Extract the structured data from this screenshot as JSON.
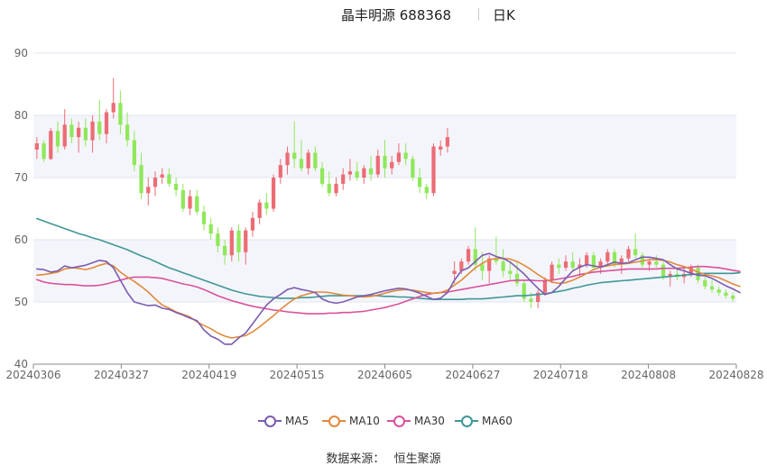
{
  "header": {
    "title": "晶丰明源 688368",
    "period": "日K"
  },
  "source": {
    "label": "数据来源：",
    "value": "恒生聚源"
  },
  "colors": {
    "up": "#ec6c75",
    "down": "#8fe85a",
    "ma5": "#7b5cb0",
    "ma10": "#e08a3c",
    "ma30": "#d9519c",
    "ma60": "#3f9797"
  },
  "chart_data": {
    "type": "candlestick",
    "ylim": [
      40,
      90
    ],
    "yticks": [
      40,
      50,
      60,
      70,
      80,
      90
    ],
    "x_tick_labels": [
      "20240306",
      "20240327",
      "20240419",
      "20240515",
      "20240605",
      "20240627",
      "20240718",
      "20240808",
      "20240828"
    ],
    "legend": [
      {
        "key": "ma5",
        "label": "MA5"
      },
      {
        "key": "ma10",
        "label": "MA10"
      },
      {
        "key": "ma30",
        "label": "MA30"
      },
      {
        "key": "ma60",
        "label": "MA60"
      }
    ],
    "ohlc": [
      [
        74.5,
        76.5,
        73.0,
        75.5
      ],
      [
        75.5,
        76.0,
        72.5,
        73.0
      ],
      [
        73.0,
        78.0,
        72.8,
        77.5
      ],
      [
        77.5,
        79.0,
        74.0,
        75.0
      ],
      [
        75.0,
        81.0,
        74.5,
        78.5
      ],
      [
        78.5,
        79.5,
        75.5,
        76.5
      ],
      [
        76.5,
        79.0,
        74.0,
        78.0
      ],
      [
        78.0,
        79.5,
        75.0,
        76.0
      ],
      [
        76.0,
        80.0,
        74.0,
        79.0
      ],
      [
        79.0,
        82.5,
        76.0,
        77.0
      ],
      [
        77.0,
        81.0,
        75.5,
        80.5
      ],
      [
        80.5,
        86.0,
        79.5,
        82.0
      ],
      [
        82.0,
        84.0,
        77.0,
        78.5
      ],
      [
        78.5,
        80.5,
        75.0,
        76.0
      ],
      [
        76.0,
        77.5,
        71.0,
        72.0
      ],
      [
        72.0,
        74.0,
        66.5,
        67.5
      ],
      [
        67.5,
        70.0,
        65.5,
        68.5
      ],
      [
        68.5,
        71.0,
        67.0,
        70.0
      ],
      [
        70.0,
        71.5,
        69.0,
        70.5
      ],
      [
        70.5,
        71.5,
        68.5,
        69.0
      ],
      [
        69.0,
        70.0,
        67.0,
        68.0
      ],
      [
        68.0,
        69.0,
        64.5,
        65.0
      ],
      [
        65.0,
        68.0,
        64.0,
        67.0
      ],
      [
        67.0,
        68.0,
        64.0,
        64.5
      ],
      [
        64.5,
        65.5,
        61.5,
        62.5
      ],
      [
        62.5,
        63.5,
        60.0,
        61.0
      ],
      [
        61.0,
        62.0,
        58.0,
        59.0
      ],
      [
        59.0,
        60.0,
        56.0,
        57.5
      ],
      [
        57.5,
        62.0,
        56.5,
        61.5
      ],
      [
        61.5,
        62.5,
        56.5,
        58.0
      ],
      [
        58.0,
        62.0,
        56.0,
        61.5
      ],
      [
        61.5,
        64.5,
        60.5,
        63.5
      ],
      [
        63.5,
        66.5,
        62.5,
        66.0
      ],
      [
        66.0,
        67.5,
        64.0,
        65.0
      ],
      [
        65.0,
        70.5,
        64.5,
        70.0
      ],
      [
        70.0,
        73.0,
        69.0,
        72.0
      ],
      [
        72.0,
        75.0,
        70.5,
        74.0
      ],
      [
        74.0,
        79.0,
        71.5,
        73.0
      ],
      [
        73.0,
        76.0,
        71.0,
        71.5
      ],
      [
        71.5,
        74.5,
        70.5,
        74.0
      ],
      [
        74.0,
        75.0,
        71.0,
        71.5
      ],
      [
        71.5,
        72.5,
        68.5,
        69.0
      ],
      [
        69.0,
        71.0,
        67.0,
        67.5
      ],
      [
        67.5,
        70.0,
        67.0,
        69.0
      ],
      [
        69.0,
        71.5,
        68.0,
        70.5
      ],
      [
        70.5,
        73.0,
        69.5,
        71.0
      ],
      [
        71.0,
        72.5,
        69.5,
        70.0
      ],
      [
        70.0,
        72.0,
        69.0,
        71.5
      ],
      [
        71.5,
        73.5,
        69.5,
        70.5
      ],
      [
        70.5,
        74.5,
        70.0,
        73.5
      ],
      [
        73.5,
        76.0,
        70.0,
        71.5
      ],
      [
        71.5,
        73.5,
        70.5,
        72.5
      ],
      [
        72.5,
        75.5,
        72.0,
        74.0
      ],
      [
        74.0,
        75.5,
        72.0,
        73.0
      ],
      [
        73.0,
        73.5,
        69.5,
        70.0
      ],
      [
        70.0,
        71.5,
        67.5,
        68.5
      ],
      [
        68.5,
        69.0,
        66.5,
        67.5
      ],
      [
        67.5,
        75.5,
        67.0,
        75.0
      ],
      [
        74.5,
        76.0,
        73.5,
        75.0
      ],
      [
        75.0,
        78.0,
        74.0,
        76.5
      ],
      [
        54.5,
        56.5,
        53.0,
        55.0
      ],
      [
        55.0,
        57.0,
        54.5,
        56.5
      ],
      [
        56.5,
        59.0,
        56.0,
        58.5
      ],
      [
        58.5,
        62.0,
        55.0,
        56.0
      ],
      [
        56.0,
        58.0,
        53.5,
        55.0
      ],
      [
        55.0,
        57.5,
        53.0,
        57.0
      ],
      [
        57.0,
        60.5,
        56.0,
        56.5
      ],
      [
        56.5,
        58.5,
        54.0,
        55.0
      ],
      [
        55.0,
        56.5,
        53.5,
        54.5
      ],
      [
        54.5,
        56.5,
        52.5,
        53.0
      ],
      [
        53.0,
        53.5,
        50.0,
        50.5
      ],
      [
        50.5,
        51.5,
        49.0,
        50.0
      ],
      [
        50.0,
        52.0,
        49.0,
        51.5
      ],
      [
        51.5,
        54.0,
        51.0,
        53.5
      ],
      [
        53.5,
        56.5,
        53.0,
        56.0
      ],
      [
        56.0,
        57.0,
        54.5,
        55.5
      ],
      [
        55.5,
        57.5,
        55.0,
        56.5
      ],
      [
        56.5,
        58.0,
        55.0,
        55.5
      ],
      [
        55.5,
        57.0,
        54.0,
        56.0
      ],
      [
        56.0,
        58.0,
        55.5,
        57.5
      ],
      [
        57.5,
        58.0,
        55.0,
        55.5
      ],
      [
        55.5,
        57.0,
        54.5,
        56.5
      ],
      [
        56.5,
        58.5,
        56.0,
        58.0
      ],
      [
        58.0,
        58.5,
        55.5,
        56.0
      ],
      [
        56.0,
        57.5,
        54.5,
        57.0
      ],
      [
        57.0,
        59.0,
        56.5,
        58.5
      ],
      [
        58.5,
        61.0,
        57.0,
        57.5
      ],
      [
        57.5,
        58.0,
        55.5,
        56.0
      ],
      [
        56.0,
        57.0,
        55.0,
        56.5
      ],
      [
        56.5,
        57.5,
        55.5,
        56.0
      ],
      [
        56.0,
        56.5,
        53.5,
        54.0
      ],
      [
        54.0,
        55.0,
        52.5,
        54.5
      ],
      [
        54.5,
        55.5,
        53.5,
        54.0
      ],
      [
        54.0,
        55.5,
        53.0,
        54.5
      ],
      [
        54.5,
        56.0,
        54.0,
        55.5
      ],
      [
        55.5,
        56.0,
        53.0,
        53.5
      ],
      [
        53.5,
        54.0,
        52.0,
        52.5
      ],
      [
        52.5,
        53.5,
        51.5,
        52.0
      ],
      [
        52.0,
        52.5,
        51.0,
        51.5
      ],
      [
        51.5,
        52.0,
        50.5,
        51.0
      ],
      [
        51.0,
        51.5,
        50.0,
        50.5
      ]
    ],
    "ma5": [
      55.3,
      55.2,
      54.8,
      55.0,
      55.8,
      55.5,
      55.7,
      55.9,
      56.3,
      56.7,
      56.5,
      55.5,
      53.5,
      51.5,
      50.0,
      49.7,
      49.4,
      49.5,
      49.0,
      48.8,
      48.3,
      47.9,
      47.4,
      47.0,
      45.5,
      44.5,
      44.0,
      43.2,
      43.2,
      44.2,
      45.0,
      46.5,
      48.0,
      49.5,
      50.5,
      51.2,
      52.0,
      52.3,
      52.0,
      51.8,
      51.5,
      50.5,
      50.0,
      49.8,
      50.0,
      50.4,
      50.8,
      51.0,
      51.2,
      51.5,
      51.8,
      52.0,
      52.2,
      52.1,
      51.8,
      51.4,
      50.9,
      50.4,
      50.6,
      51.5,
      53.5,
      55.0,
      55.5,
      56.5,
      57.5,
      57.8,
      57.3,
      57.0,
      56.4,
      55.5,
      54.5,
      53.3,
      52.2,
      51.2,
      51.5,
      52.5,
      53.8,
      55.0,
      55.6,
      56.0,
      55.8,
      55.6,
      56.0,
      56.4,
      56.2,
      56.3,
      56.8,
      57.2,
      57.2,
      57.0,
      56.8,
      56.0,
      55.3,
      55.0,
      54.6,
      54.3,
      54.2,
      53.8,
      53.2,
      52.6,
      52.1,
      51.5
    ],
    "ma10": [
      54.3,
      54.4,
      54.6,
      54.8,
      55.3,
      55.5,
      55.4,
      55.2,
      55.5,
      55.9,
      56.2,
      55.8,
      54.8,
      54.0,
      53.3,
      52.5,
      51.6,
      50.5,
      49.5,
      49.0,
      48.4,
      48.0,
      47.6,
      46.8,
      46.2,
      45.7,
      45.0,
      44.5,
      44.2,
      44.4,
      44.6,
      45.2,
      46.0,
      46.9,
      47.8,
      48.8,
      49.7,
      50.5,
      51.0,
      51.3,
      51.6,
      51.6,
      51.5,
      51.3,
      51.1,
      51.0,
      50.9,
      50.8,
      50.9,
      51.1,
      51.4,
      51.7,
      51.9,
      52.0,
      51.9,
      51.7,
      51.5,
      51.4,
      51.5,
      51.9,
      52.7,
      53.5,
      54.5,
      55.5,
      56.2,
      56.8,
      57.0,
      57.0,
      56.9,
      56.5,
      55.9,
      55.2,
      54.4,
      53.7,
      53.2,
      53.0,
      53.1,
      53.5,
      54.0,
      54.6,
      55.2,
      55.6,
      55.8,
      56.0,
      56.1,
      56.2,
      56.4,
      56.6,
      56.8,
      56.8,
      56.7,
      56.4,
      56.0,
      55.7,
      55.3,
      54.8,
      54.4,
      54.2,
      53.9,
      53.4,
      52.9,
      52.5
    ],
    "ma30": [
      53.6,
      53.2,
      53.0,
      52.9,
      52.8,
      52.8,
      52.7,
      52.6,
      52.6,
      52.7,
      52.9,
      53.2,
      53.5,
      53.8,
      54.0,
      54.0,
      54.0,
      53.9,
      53.8,
      53.5,
      53.2,
      52.9,
      52.7,
      52.4,
      52.0,
      51.5,
      51.0,
      50.6,
      50.2,
      49.9,
      49.6,
      49.3,
      49.1,
      48.9,
      48.7,
      48.6,
      48.4,
      48.3,
      48.2,
      48.1,
      48.1,
      48.1,
      48.2,
      48.2,
      48.3,
      48.3,
      48.4,
      48.5,
      48.7,
      48.9,
      49.1,
      49.4,
      49.7,
      50.1,
      50.5,
      50.9,
      51.2,
      51.4,
      51.5,
      51.6,
      51.8,
      52.0,
      52.2,
      52.4,
      52.6,
      52.8,
      53.0,
      53.2,
      53.4,
      53.5,
      53.5,
      53.5,
      53.4,
      53.4,
      53.5,
      53.7,
      53.9,
      54.1,
      54.4,
      54.6,
      54.8,
      54.9,
      55.0,
      55.1,
      55.2,
      55.3,
      55.3,
      55.3,
      55.3,
      55.3,
      55.4,
      55.4,
      55.4,
      55.5,
      55.6,
      55.7,
      55.7,
      55.6,
      55.5,
      55.3,
      55.1,
      54.9
    ],
    "ma60": [
      63.4,
      63.0,
      62.6,
      62.2,
      61.8,
      61.4,
      61.0,
      60.7,
      60.3,
      60.0,
      59.6,
      59.2,
      58.8,
      58.4,
      57.9,
      57.4,
      57.0,
      56.5,
      56.0,
      55.5,
      55.1,
      54.7,
      54.3,
      53.9,
      53.5,
      53.1,
      52.7,
      52.3,
      51.9,
      51.6,
      51.3,
      51.1,
      50.9,
      50.8,
      50.7,
      50.6,
      50.6,
      50.6,
      50.7,
      50.7,
      50.8,
      50.9,
      51.0,
      51.0,
      51.0,
      51.0,
      51.0,
      51.0,
      51.0,
      51.0,
      50.9,
      50.9,
      50.8,
      50.8,
      50.7,
      50.6,
      50.5,
      50.4,
      50.4,
      50.4,
      50.4,
      50.4,
      50.5,
      50.5,
      50.5,
      50.6,
      50.7,
      50.8,
      50.9,
      51.0,
      51.0,
      51.1,
      51.2,
      51.3,
      51.5,
      51.7,
      51.9,
      52.2,
      52.4,
      52.7,
      52.9,
      53.1,
      53.2,
      53.3,
      53.4,
      53.5,
      53.6,
      53.7,
      53.8,
      53.9,
      54.0,
      54.1,
      54.2,
      54.3,
      54.4,
      54.5,
      54.6,
      54.6,
      54.6,
      54.6,
      54.6,
      54.7
    ]
  }
}
